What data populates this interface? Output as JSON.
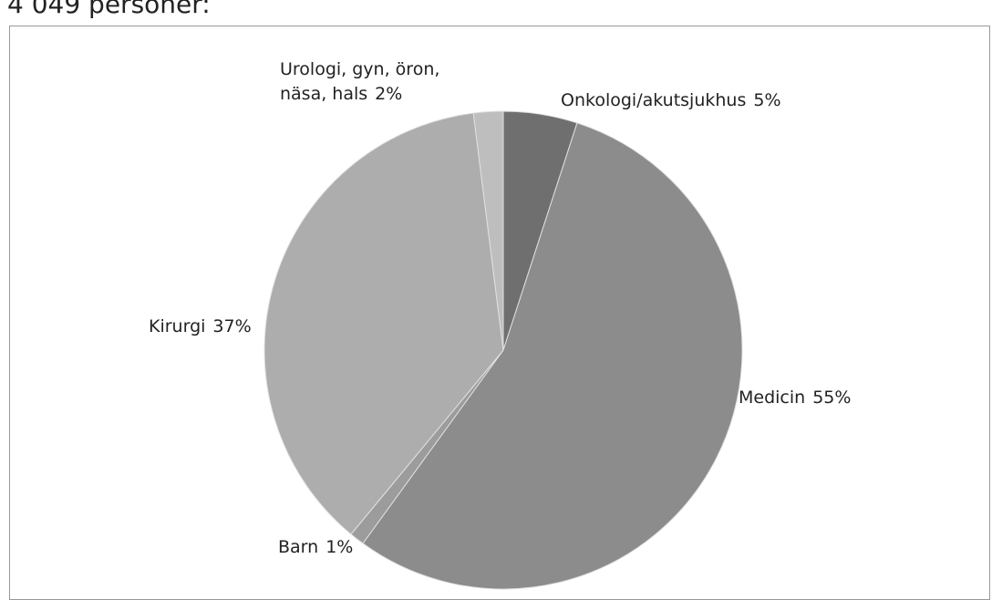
{
  "chart_data": {
    "type": "pie",
    "title": "4 049 personer:",
    "categories": [
      "Onkologi/akutsjukhus",
      "Medicin",
      "Barn",
      "Kirurgi",
      "Urologi, gyn, öron, näsa, hals"
    ],
    "values": [
      5,
      55,
      1,
      37,
      2
    ],
    "value_labels": [
      "5%",
      "55%",
      "1%",
      "37%",
      "2%"
    ],
    "colors": [
      "#6f6f6f",
      "#8c8c8c",
      "#9c9c9c",
      "#adadad",
      "#bebebe"
    ]
  }
}
